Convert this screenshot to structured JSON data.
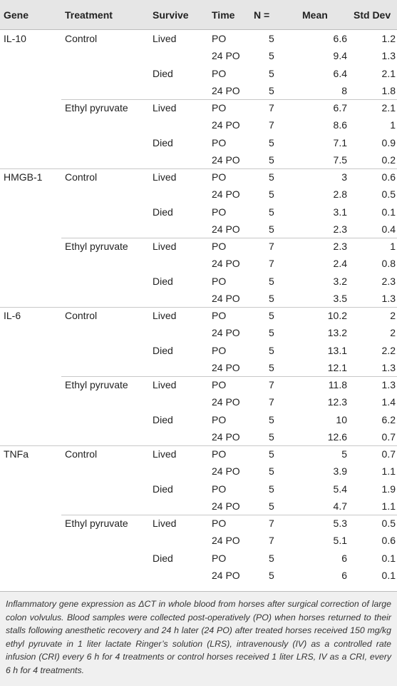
{
  "headers": {
    "gene": "Gene",
    "treatment": "Treatment",
    "survive": "Survive",
    "time": "Time",
    "n": "N =",
    "mean": "Mean",
    "sd": "Std Dev"
  },
  "rows": [
    {
      "gene": "IL-10",
      "treatment": "Control",
      "survive": "Lived",
      "time": "PO",
      "n": "5",
      "mean": "6.6",
      "sd": "1.2"
    },
    {
      "gene": "",
      "treatment": "",
      "survive": "",
      "time": "24 PO",
      "n": "5",
      "mean": "9.4",
      "sd": "1.3"
    },
    {
      "gene": "",
      "treatment": "",
      "survive": "Died",
      "time": "PO",
      "n": "5",
      "mean": "6.4",
      "sd": "2.1"
    },
    {
      "gene": "",
      "treatment": "",
      "survive": "",
      "time": "24 PO",
      "n": "5",
      "mean": "8",
      "sd": "1.8"
    },
    {
      "gene": "",
      "treatment": "Ethyl pyruvate",
      "survive": "Lived",
      "time": "PO",
      "n": "7",
      "mean": "6.7",
      "sd": "2.1"
    },
    {
      "gene": "",
      "treatment": "",
      "survive": "",
      "time": "24 PO",
      "n": "7",
      "mean": "8.6",
      "sd": "1"
    },
    {
      "gene": "",
      "treatment": "",
      "survive": "Died",
      "time": "PO",
      "n": "5",
      "mean": "7.1",
      "sd": "0.9"
    },
    {
      "gene": "",
      "treatment": "",
      "survive": "",
      "time": "24 PO",
      "n": "5",
      "mean": "7.5",
      "sd": "0.2"
    },
    {
      "gene": "HMGB-1",
      "treatment": "Control",
      "survive": "Lived",
      "time": "PO",
      "n": "5",
      "mean": "3",
      "sd": "0.6"
    },
    {
      "gene": "",
      "treatment": "",
      "survive": "",
      "time": "24 PO",
      "n": "5",
      "mean": "2.8",
      "sd": "0.5"
    },
    {
      "gene": "",
      "treatment": "",
      "survive": "Died",
      "time": "PO",
      "n": "5",
      "mean": "3.1",
      "sd": "0.1"
    },
    {
      "gene": "",
      "treatment": "",
      "survive": "",
      "time": "24 PO",
      "n": "5",
      "mean": "2.3",
      "sd": "0.4"
    },
    {
      "gene": "",
      "treatment": "Ethyl pyruvate",
      "survive": "Lived",
      "time": "PO",
      "n": "7",
      "mean": "2.3",
      "sd": "1"
    },
    {
      "gene": "",
      "treatment": "",
      "survive": "",
      "time": "24 PO",
      "n": "7",
      "mean": "2.4",
      "sd": "0.8"
    },
    {
      "gene": "",
      "treatment": "",
      "survive": "Died",
      "time": "PO",
      "n": "5",
      "mean": "3.2",
      "sd": "2.3"
    },
    {
      "gene": "",
      "treatment": "",
      "survive": "",
      "time": "24 PO",
      "n": "5",
      "mean": "3.5",
      "sd": "1.3"
    },
    {
      "gene": "IL-6",
      "treatment": "Control",
      "survive": "Lived",
      "time": "PO",
      "n": "5",
      "mean": "10.2",
      "sd": "2"
    },
    {
      "gene": "",
      "treatment": "",
      "survive": "",
      "time": "24 PO",
      "n": "5",
      "mean": "13.2",
      "sd": "2"
    },
    {
      "gene": "",
      "treatment": "",
      "survive": "Died",
      "time": "PO",
      "n": "5",
      "mean": "13.1",
      "sd": "2.2"
    },
    {
      "gene": "",
      "treatment": "",
      "survive": "",
      "time": "24 PO",
      "n": "5",
      "mean": "12.1",
      "sd": "1.3"
    },
    {
      "gene": "",
      "treatment": "Ethyl pyruvate",
      "survive": "Lived",
      "time": "PO",
      "n": "7",
      "mean": "11.8",
      "sd": "1.3"
    },
    {
      "gene": "",
      "treatment": "",
      "survive": "",
      "time": "24 PO",
      "n": "7",
      "mean": "12.3",
      "sd": "1.4"
    },
    {
      "gene": "",
      "treatment": "",
      "survive": "Died",
      "time": "PO",
      "n": "5",
      "mean": "10",
      "sd": "6.2"
    },
    {
      "gene": "",
      "treatment": "",
      "survive": "",
      "time": "24 PO",
      "n": "5",
      "mean": "12.6",
      "sd": "0.7"
    },
    {
      "gene": "TNFa",
      "treatment": "Control",
      "survive": "Lived",
      "time": "PO",
      "n": "5",
      "mean": "5",
      "sd": "0.7"
    },
    {
      "gene": "",
      "treatment": "",
      "survive": "",
      "time": "24 PO",
      "n": "5",
      "mean": "3.9",
      "sd": "1.1"
    },
    {
      "gene": "",
      "treatment": "",
      "survive": "Died",
      "time": "PO",
      "n": "5",
      "mean": "5.4",
      "sd": "1.9"
    },
    {
      "gene": "",
      "treatment": "",
      "survive": "",
      "time": "24 PO",
      "n": "5",
      "mean": "4.7",
      "sd": "1.1"
    },
    {
      "gene": "",
      "treatment": "Ethyl pyruvate",
      "survive": "Lived",
      "time": "PO",
      "n": "7",
      "mean": "5.3",
      "sd": "0.5"
    },
    {
      "gene": "",
      "treatment": "",
      "survive": "",
      "time": "24 PO",
      "n": "7",
      "mean": "5.1",
      "sd": "0.6"
    },
    {
      "gene": "",
      "treatment": "",
      "survive": "Died",
      "time": "PO",
      "n": "5",
      "mean": "6",
      "sd": "0.1"
    },
    {
      "gene": "",
      "treatment": "",
      "survive": "",
      "time": "24 PO",
      "n": "5",
      "mean": "6",
      "sd": "0.1"
    }
  ],
  "caption": "Inflammatory gene expression as ΔCT in whole blood from horses after surgical correction of large colon volvulus. Blood samples were collected post-operatively (PO) when horses returned to their stalls following anesthetic recovery and 24 h later (24 PO) after treated horses received 150 mg/kg ethyl pyruvate in 1 liter lactate Ringer’s solution (LRS), intravenously (IV) as a controlled rate infusion (CRI) every 6 h for 4 treatments or control horses received 1 liter LRS, IV as a CRI, every 6 h for 4 treatments."
}
